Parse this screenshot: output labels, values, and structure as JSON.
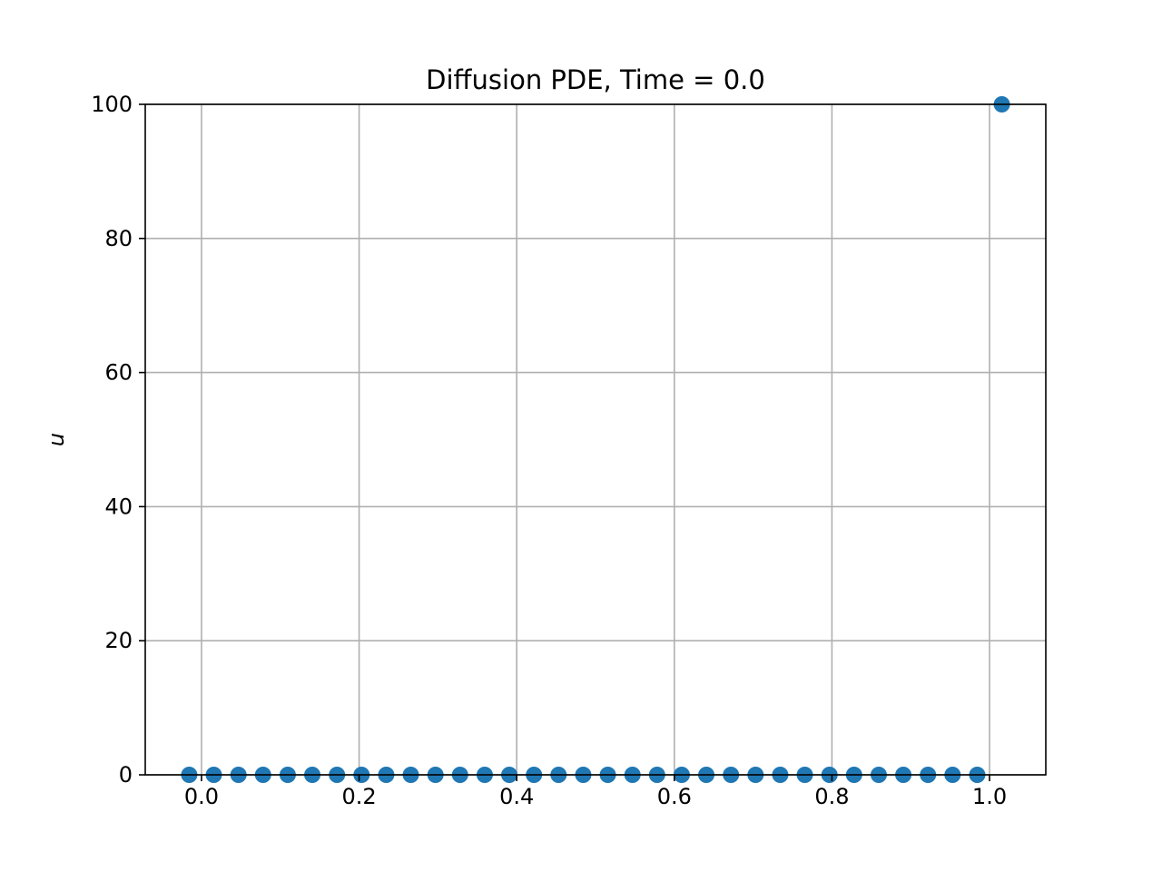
{
  "chart_data": {
    "type": "scatter",
    "title": "Diffusion PDE, Time = 0.0",
    "xlabel": "",
    "ylabel": "u",
    "xlim": [
      -0.0714,
      1.0714
    ],
    "ylim": [
      0,
      100
    ],
    "xticks": [
      0.0,
      0.2,
      0.4,
      0.6,
      0.8,
      1.0
    ],
    "xtick_labels": [
      "0.0",
      "0.2",
      "0.4",
      "0.6",
      "0.8",
      "1.0"
    ],
    "yticks": [
      0,
      20,
      40,
      60,
      80,
      100
    ],
    "ytick_labels": [
      "0",
      "20",
      "40",
      "60",
      "80",
      "100"
    ],
    "grid": true,
    "marker_color": "#1f77b4",
    "series": [
      {
        "x": [
          -0.0156,
          0.0156,
          0.0469,
          0.0781,
          0.1094,
          0.1406,
          0.1719,
          0.2031,
          0.2344,
          0.2656,
          0.2969,
          0.3281,
          0.3594,
          0.3906,
          0.4219,
          0.4531,
          0.4844,
          0.5156,
          0.5469,
          0.5781,
          0.6094,
          0.6406,
          0.6719,
          0.7031,
          0.7344,
          0.7656,
          0.7969,
          0.8281,
          0.8594,
          0.8906,
          0.9219,
          0.9531,
          0.9844,
          1.0156
        ],
        "y": [
          0,
          0,
          0,
          0,
          0,
          0,
          0,
          0,
          0,
          0,
          0,
          0,
          0,
          0,
          0,
          0,
          0,
          0,
          0,
          0,
          0,
          0,
          0,
          0,
          0,
          0,
          0,
          0,
          0,
          0,
          0,
          0,
          0,
          100
        ]
      }
    ]
  }
}
